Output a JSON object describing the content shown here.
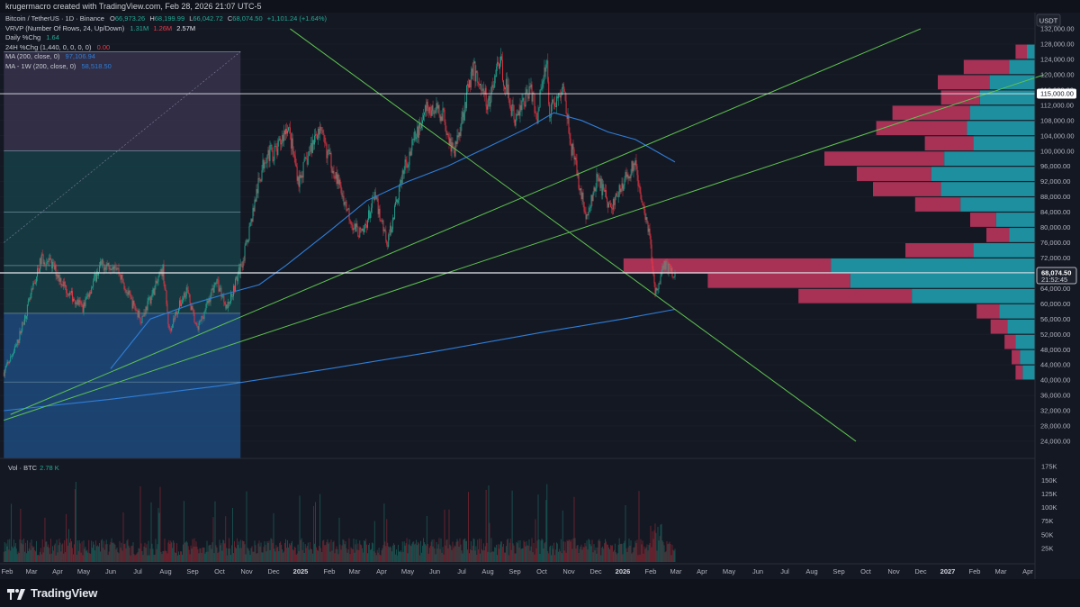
{
  "topbar": {
    "text": "krugermacro created with TradingView.com, Feb 28, 2026 21:07 UTC-5"
  },
  "legend": {
    "symbol": "Bitcoin / TetherUS · 1D · Binance",
    "ohlc": [
      {
        "k": "O",
        "v": "66,973.26"
      },
      {
        "k": "H",
        "v": "68,199.99"
      },
      {
        "k": "L",
        "v": "66,042.72"
      },
      {
        "k": "C",
        "v": "68,074.50"
      }
    ],
    "change": "+1,101.24 (+1.64%)",
    "vrvp_name": "VRVP (Number Of Rows, 24, Up/Down)",
    "vrvp_vals": [
      "1.31M",
      "1.26M",
      "2.57M"
    ],
    "daily_name": "Daily %Chg",
    "daily_val": "1.64",
    "chg24_name": "24H %Chg (1,440, 0, 0, 0, 0)",
    "chg24_val": "0.00",
    "ma_name": "MA (200, close, 0)",
    "ma_val": "97,106.94",
    "ma1w_name": "MA - 1W (200, close, 0)",
    "ma1w_val": "58,518.50"
  },
  "volume_legend": {
    "name": "Vol · BTC",
    "value": "2.78 K"
  },
  "footer": {
    "logo_text": "TradingView"
  },
  "colors": {
    "bg": "#141823",
    "up": "#22ab94",
    "down": "#f23645",
    "ma": "#2f7ed8",
    "trend": "#5ec44f",
    "vp_up": "#1ea4b5",
    "vp_down": "#c2365f"
  },
  "chart_data": {
    "type": "candlestick",
    "symbol": "BTCUSDT",
    "exchange": "Binance",
    "interval": "1D",
    "currency": "USDT",
    "y_axis_ticks": [
      24000,
      28000,
      32000,
      36000,
      40000,
      44000,
      48000,
      52000,
      56000,
      60000,
      64000,
      68000,
      72000,
      76000,
      80000,
      84000,
      88000,
      92000,
      96000,
      100000,
      104000,
      108000,
      112000,
      116000,
      120000,
      124000,
      128000,
      132000
    ],
    "y_axis_labels": [
      "24,000.00",
      "28,000.00",
      "32,000.00",
      "36,000.00",
      "40,000.00",
      "44,000.00",
      "48,000.00",
      "52,000.00",
      "56,000.00",
      "60,000.00",
      "64,000.00",
      "68,000.00",
      "72,000.00",
      "76,000.00",
      "80,000.00",
      "84,000.00",
      "88,000.00",
      "92,000.00",
      "96,000.00",
      "100,000.00",
      "104,000.00",
      "108,000.00",
      "112,000.00",
      "116,000.00",
      "120,000.00",
      "124,000.00",
      "128,000.00",
      "132,000.00"
    ],
    "y_axis_title": "USDT",
    "ylim": [
      19500,
      136000
    ],
    "x_axis_labels": [
      "Feb",
      "Mar",
      "Apr",
      "May",
      "Jun",
      "Jul",
      "Aug",
      "Sep",
      "Oct",
      "Nov",
      "Dec",
      "2025",
      "Feb",
      "Mar",
      "Apr",
      "May",
      "Jun",
      "Jul",
      "Aug",
      "Sep",
      "Oct",
      "Nov",
      "Dec",
      "2026",
      "Feb",
      "Mar",
      "Apr",
      "May",
      "Jun",
      "Jul",
      "Aug",
      "Sep",
      "Oct",
      "Nov",
      "Dec",
      "2027",
      "Feb",
      "Mar",
      "Apr"
    ],
    "x_axis_dates": [
      "2024-02-01",
      "2024-03-01",
      "2024-04-01",
      "2024-05-01",
      "2024-06-01",
      "2024-07-01",
      "2024-08-01",
      "2024-09-01",
      "2024-10-01",
      "2024-11-01",
      "2024-12-01",
      "2025-01-01",
      "2025-02-01",
      "2025-03-01",
      "2025-04-01",
      "2025-05-01",
      "2025-06-01",
      "2025-07-01",
      "2025-08-01",
      "2025-09-01",
      "2025-10-01",
      "2025-11-01",
      "2025-12-01",
      "2026-01-01",
      "2026-02-01",
      "2026-03-01",
      "2026-04-01",
      "2026-05-01",
      "2026-06-01",
      "2026-07-01",
      "2026-08-01",
      "2026-09-01",
      "2026-10-01",
      "2026-11-01",
      "2026-12-01",
      "2027-01-01",
      "2027-02-01",
      "2027-03-01",
      "2027-04-01"
    ],
    "price_path": [
      [
        "2024-01-28",
        42000
      ],
      [
        "2024-02-12",
        49000
      ],
      [
        "2024-02-28",
        61000
      ],
      [
        "2024-03-13",
        72000
      ],
      [
        "2024-03-26",
        70000
      ],
      [
        "2024-04-13",
        63000
      ],
      [
        "2024-04-30",
        59000
      ],
      [
        "2024-05-20",
        70000
      ],
      [
        "2024-06-06",
        70500
      ],
      [
        "2024-06-24",
        60500
      ],
      [
        "2024-07-05",
        56000
      ],
      [
        "2024-07-29",
        69000
      ],
      [
        "2024-08-05",
        53000
      ],
      [
        "2024-08-25",
        64000
      ],
      [
        "2024-09-06",
        53000
      ],
      [
        "2024-09-27",
        66000
      ],
      [
        "2024-10-10",
        59000
      ],
      [
        "2024-10-29",
        72500
      ],
      [
        "2024-11-13",
        90000
      ],
      [
        "2024-11-22",
        99000
      ],
      [
        "2024-12-05",
        100000
      ],
      [
        "2024-12-17",
        107000
      ],
      [
        "2024-12-30",
        92000
      ],
      [
        "2025-01-20",
        106000
      ],
      [
        "2025-02-03",
        97000
      ],
      [
        "2025-02-28",
        80000
      ],
      [
        "2025-03-10",
        78000
      ],
      [
        "2025-03-24",
        88000
      ],
      [
        "2025-04-08",
        76000
      ],
      [
        "2025-04-25",
        94000
      ],
      [
        "2025-05-22",
        111000
      ],
      [
        "2025-06-10",
        110000
      ],
      [
        "2025-06-22",
        99000
      ],
      [
        "2025-07-14",
        122000
      ],
      [
        "2025-08-02",
        112000
      ],
      [
        "2025-08-14",
        124000
      ],
      [
        "2025-09-01",
        108000
      ],
      [
        "2025-09-18",
        117000
      ],
      [
        "2025-09-26",
        109000
      ],
      [
        "2025-10-06",
        125000
      ],
      [
        "2025-10-10",
        111000
      ],
      [
        "2025-10-27",
        116000
      ],
      [
        "2025-11-04",
        101000
      ],
      [
        "2025-11-21",
        82000
      ],
      [
        "2025-12-03",
        93000
      ],
      [
        "2025-12-18",
        85000
      ],
      [
        "2026-01-14",
        97000
      ],
      [
        "2026-01-31",
        78000
      ],
      [
        "2026-02-06",
        62000
      ],
      [
        "2026-02-15",
        70000
      ],
      [
        "2026-02-28",
        68074.5
      ]
    ],
    "ma_200d": [
      [
        "2024-06-01",
        43000
      ],
      [
        "2024-07-15",
        56000
      ],
      [
        "2024-09-01",
        60000
      ],
      [
        "2024-10-15",
        63000
      ],
      [
        "2024-11-15",
        65000
      ],
      [
        "2024-12-15",
        70000
      ],
      [
        "2025-02-01",
        79000
      ],
      [
        "2025-03-15",
        87000
      ],
      [
        "2025-05-01",
        92000
      ],
      [
        "2025-06-15",
        96000
      ],
      [
        "2025-08-01",
        101000
      ],
      [
        "2025-09-15",
        106000
      ],
      [
        "2025-10-15",
        110000
      ],
      [
        "2025-11-15",
        108000
      ],
      [
        "2025-12-15",
        105000
      ],
      [
        "2026-01-15",
        103000
      ],
      [
        "2026-02-28",
        97106.94
      ]
    ],
    "ma_200w": [
      [
        "2024-01-28",
        32000
      ],
      [
        "2024-06-01",
        35000
      ],
      [
        "2024-10-01",
        38500
      ],
      [
        "2025-02-01",
        43000
      ],
      [
        "2025-06-01",
        47500
      ],
      [
        "2025-10-01",
        52500
      ],
      [
        "2026-01-01",
        56000
      ],
      [
        "2026-02-28",
        58518.5
      ]
    ],
    "horizontal_levels": [
      115000,
      68074.5
    ],
    "price_labels": [
      {
        "price": 115000,
        "text": "115,000.00"
      },
      {
        "price": 68074.5,
        "text": "68,074.50",
        "sub": "21:52:45"
      }
    ],
    "trendlines": [
      {
        "from": [
          "2024-02-05",
          31000
        ],
        "to": [
          "2026-12-01",
          132000
        ]
      },
      {
        "from": [
          "2024-01-28",
          29500
        ],
        "to": [
          "2027-04-20",
          120000
        ]
      },
      {
        "from": [
          "2024-12-20",
          132000
        ],
        "to": [
          "2026-09-20",
          24000
        ]
      }
    ],
    "volume_profile": {
      "bin_size": 4000,
      "rows": [
        {
          "low": 40000,
          "up": 0.38,
          "down": 0.22
        },
        {
          "low": 44000,
          "up": 0.46,
          "down": 0.26
        },
        {
          "low": 48000,
          "up": 0.6,
          "down": 0.34
        },
        {
          "low": 52000,
          "up": 0.85,
          "down": 0.52
        },
        {
          "low": 56000,
          "up": 1.1,
          "down": 0.7
        },
        {
          "low": 60000,
          "up": 3.8,
          "down": 3.5
        },
        {
          "low": 64000,
          "up": 5.7,
          "down": 4.4
        },
        {
          "low": 68000,
          "up": 6.3,
          "down": 6.4
        },
        {
          "low": 72000,
          "up": 1.9,
          "down": 2.1
        },
        {
          "low": 76000,
          "up": 0.8,
          "down": 0.7
        },
        {
          "low": 80000,
          "up": 1.2,
          "down": 0.8
        },
        {
          "low": 84000,
          "up": 2.3,
          "down": 1.4
        },
        {
          "low": 88000,
          "up": 2.9,
          "down": 2.1
        },
        {
          "low": 92000,
          "up": 3.2,
          "down": 2.3
        },
        {
          "low": 96000,
          "up": 2.8,
          "down": 3.7
        },
        {
          "low": 100000,
          "up": 1.9,
          "down": 1.5
        },
        {
          "low": 104000,
          "up": 2.1,
          "down": 2.8
        },
        {
          "low": 108000,
          "up": 2.0,
          "down": 2.4
        },
        {
          "low": 112000,
          "up": 1.7,
          "down": 1.2
        },
        {
          "low": 116000,
          "up": 1.4,
          "down": 1.6
        },
        {
          "low": 120000,
          "up": 0.8,
          "down": 1.4
        },
        {
          "low": 124000,
          "up": 0.25,
          "down": 0.35
        }
      ]
    },
    "volume_axis_ticks": [
      25000,
      50000,
      75000,
      100000,
      125000,
      150000,
      175000
    ],
    "volume_axis_labels": [
      "25K",
      "50K",
      "75K",
      "100K",
      "125K",
      "150K",
      "175K"
    ],
    "volume_last": "2.78 K",
    "range_zones": [
      {
        "from": "2024-01-28",
        "to": "2024-10-25",
        "low": 19500,
        "high": 57500,
        "color": "#1f4f86"
      },
      {
        "from": "2024-01-28",
        "to": "2024-10-25",
        "low": 57500,
        "high": 100000,
        "color": "#17434a"
      },
      {
        "from": "2024-01-28",
        "to": "2024-10-25",
        "low": 100000,
        "high": 126000,
        "color": "#3a344f"
      }
    ],
    "range_zone_lines": [
      126000,
      100000,
      84000,
      70000,
      57500,
      39500
    ]
  }
}
